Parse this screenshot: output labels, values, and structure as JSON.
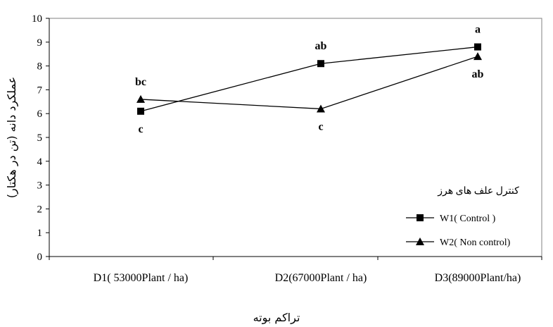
{
  "chart_data": {
    "type": "line",
    "categories": [
      "D1( 53000Plant / ha)",
      "D2(67000Plant / ha)",
      "D3(89000Plant/ha)"
    ],
    "xlabel": "تراکم بوته",
    "ylabel": "عملکرد دانه (تن در هکتار)",
    "ylim": [
      0,
      10
    ],
    "yticks": [
      0,
      1,
      2,
      3,
      4,
      5,
      6,
      7,
      8,
      9,
      10
    ],
    "grid": false,
    "legend_title": "کنترل علف های هرز",
    "legend_position": "right",
    "series": [
      {
        "name": "W1( Control )",
        "marker": "square",
        "values": [
          6.1,
          8.1,
          8.8
        ],
        "labels": [
          "c",
          "ab",
          "a"
        ],
        "label_placement": [
          "below",
          "above",
          "above"
        ]
      },
      {
        "name": "W2( Non control)",
        "marker": "triangle",
        "values": [
          6.6,
          6.2,
          8.4
        ],
        "labels": [
          "bc",
          "c",
          "ab"
        ],
        "label_placement": [
          "above",
          "below",
          "below"
        ]
      }
    ],
    "colors": {
      "line": "#000000",
      "marker": "#000000"
    }
  }
}
